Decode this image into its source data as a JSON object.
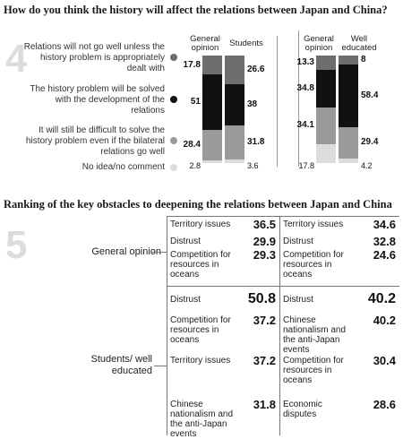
{
  "chart_data": [
    {
      "type": "bar",
      "number": "4",
      "title": "How do you think the history will affect the relations between Japan and China?",
      "stacked": true,
      "categories_japan": [
        "General opinion",
        "Students"
      ],
      "categories_china": [
        "General opinion",
        "Well educated"
      ],
      "legend": [
        {
          "label": "Relations will not go well unless the history problem is appropriately dealt with",
          "color": "#6e6e6e"
        },
        {
          "label": "The history problem will be solved with the development of the relations",
          "color": "#111111"
        },
        {
          "label": "It will still be difficult to solve the history problem even if the bilateral relations go well",
          "color": "#9a9a9a"
        },
        {
          "label": "No idea/no comment",
          "color": "#dcdcdc"
        }
      ],
      "series_values": [
        [
          17.8,
          26.6,
          13.3,
          8
        ],
        [
          51,
          38,
          34.8,
          58.4
        ],
        [
          28.4,
          31.8,
          34.1,
          29.4
        ],
        [
          2.8,
          3.6,
          17.8,
          4.2
        ]
      ],
      "value_labels": [
        [
          "17.8",
          "26.6",
          "13.3",
          "8"
        ],
        [
          "51",
          "38",
          "34.8",
          "58.4"
        ],
        [
          "28.4",
          "31.8",
          "34.1",
          "29.4"
        ],
        [
          "2.8",
          "3.6",
          "17.8",
          "4.2"
        ]
      ]
    },
    {
      "type": "table",
      "number": "5",
      "title": "Ranking of the key obstacles to deepening the relations between Japan and China",
      "groups": [
        {
          "label": "General opinion",
          "japan": [
            {
              "label": "Territory issues",
              "value": "36.5"
            },
            {
              "label": "Distrust",
              "value": "29.9"
            },
            {
              "label": "Competition for resources in oceans",
              "value": "29.3"
            }
          ],
          "china": [
            {
              "label": "Territory issues",
              "value": "34.6"
            },
            {
              "label": "Distrust",
              "value": "32.8"
            },
            {
              "label": "Competition for resources in oceans",
              "value": "24.6"
            }
          ]
        },
        {
          "label": "Students/ well educated",
          "japan": [
            {
              "label": "Distrust",
              "value": "50.8"
            },
            {
              "label": "Competition for resources in oceans",
              "value": "37.2"
            },
            {
              "label": "Territory issues",
              "value": "37.2"
            },
            {
              "label": "Chinese nationalism and the anti-Japan events",
              "value": "31.8"
            }
          ],
          "china": [
            {
              "label": "Distrust",
              "value": "40.2"
            },
            {
              "label": "Chinese nationalism and the anti-Japan events",
              "value": "40.2"
            },
            {
              "label": "Competition for resources in oceans",
              "value": "30.4"
            },
            {
              "label": "Economic disputes",
              "value": "28.6"
            }
          ]
        }
      ]
    }
  ],
  "colors": {
    "dark_gray": "#6e6e6e",
    "black": "#111111",
    "mid_gray": "#9a9a9a",
    "light_gray": "#dcdcdc",
    "number_gray": "#dcdcdc"
  }
}
